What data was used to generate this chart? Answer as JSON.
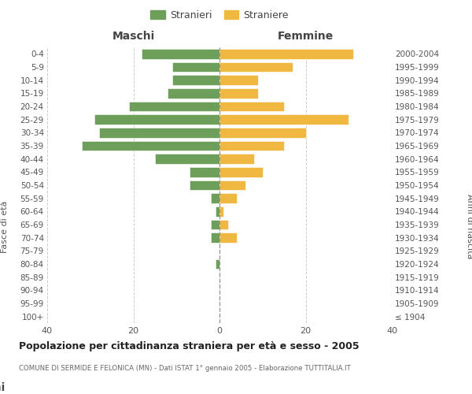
{
  "age_groups": [
    "100+",
    "95-99",
    "90-94",
    "85-89",
    "80-84",
    "75-79",
    "70-74",
    "65-69",
    "60-64",
    "55-59",
    "50-54",
    "45-49",
    "40-44",
    "35-39",
    "30-34",
    "25-29",
    "20-24",
    "15-19",
    "10-14",
    "5-9",
    "0-4"
  ],
  "birth_years": [
    "≤ 1904",
    "1905-1909",
    "1910-1914",
    "1915-1919",
    "1920-1924",
    "1925-1929",
    "1930-1934",
    "1935-1939",
    "1940-1944",
    "1945-1949",
    "1950-1954",
    "1955-1959",
    "1960-1964",
    "1965-1969",
    "1970-1974",
    "1975-1979",
    "1980-1984",
    "1985-1989",
    "1990-1994",
    "1995-1999",
    "2000-2004"
  ],
  "maschi": [
    0,
    0,
    0,
    0,
    1,
    0,
    2,
    2,
    1,
    2,
    7,
    7,
    15,
    32,
    28,
    29,
    21,
    12,
    11,
    11,
    18
  ],
  "femmine": [
    0,
    0,
    0,
    0,
    0,
    0,
    4,
    2,
    1,
    4,
    6,
    10,
    8,
    15,
    20,
    30,
    15,
    9,
    9,
    17,
    31
  ],
  "color_maschi": "#6d9e5a",
  "color_femmine": "#f0b840",
  "title": "Popolazione per cittadinanza straniera per età e sesso - 2005",
  "subtitle": "COMUNE DI SERMIDE E FELONICA (MN) - Dati ISTAT 1° gennaio 2005 - Elaborazione TUTTITALIA.IT",
  "ylabel_left": "Fasce di età",
  "ylabel_right": "Anni di nascita",
  "xlabel_left": "Maschi",
  "xlabel_right": "Femmine",
  "legend_stranieri": "Stranieri",
  "legend_straniere": "Straniere",
  "xlim": 40,
  "background_color": "#ffffff",
  "grid_color": "#cccccc"
}
